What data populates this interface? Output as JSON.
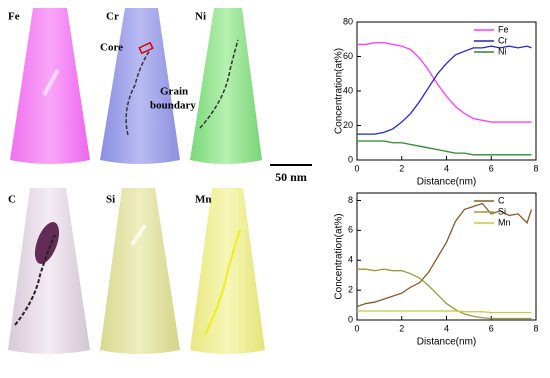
{
  "images": {
    "labels": [
      "Fe",
      "Cr",
      "Ni",
      "C",
      "Si",
      "Mn"
    ],
    "core": "Core",
    "grain_boundary": [
      "Grain",
      "boundary"
    ],
    "scale_bar": "50 nm"
  },
  "chart_data": [
    {
      "type": "line",
      "x_label": "Distance(nm)",
      "y_label": "Concentration(at%)",
      "x": [
        0,
        0.4,
        0.8,
        1.2,
        1.6,
        2.0,
        2.4,
        2.8,
        3.2,
        3.6,
        4.0,
        4.4,
        4.8,
        5.2,
        5.6,
        6.0,
        6.4,
        6.8,
        7.2,
        7.6,
        7.8
      ],
      "series": [
        {
          "name": "Fe",
          "color": "#ff3cff",
          "values": [
            67,
            67,
            68,
            68,
            67,
            66,
            64,
            59,
            52,
            44,
            37,
            31,
            27,
            24,
            23,
            22,
            22,
            22,
            22,
            22,
            22
          ]
        },
        {
          "name": "Cr",
          "color": "#2424c8",
          "values": [
            15,
            15,
            15,
            16,
            18,
            22,
            27,
            34,
            42,
            50,
            56,
            61,
            63,
            65,
            65,
            66,
            65,
            66,
            65,
            66,
            65
          ]
        },
        {
          "name": "Ni",
          "color": "#2a8c2a",
          "values": [
            11,
            11,
            11,
            11,
            10,
            10,
            9,
            8,
            7,
            6,
            5,
            4,
            4,
            3,
            3,
            3,
            3,
            3,
            3,
            3,
            3
          ]
        }
      ],
      "xlim": [
        0,
        8
      ],
      "xticks": [
        0,
        2,
        4,
        6,
        8
      ],
      "ylim": [
        0,
        80
      ],
      "yticks": [
        0,
        20,
        40,
        60,
        80
      ]
    },
    {
      "type": "line",
      "x_label": "Distance(nm)",
      "y_label": "Concentration(at%)",
      "x": [
        0,
        0.4,
        0.8,
        1.2,
        1.6,
        2.0,
        2.4,
        2.8,
        3.2,
        3.6,
        4.0,
        4.4,
        4.8,
        5.2,
        5.6,
        6.0,
        6.4,
        6.8,
        7.2,
        7.6,
        7.8
      ],
      "series": [
        {
          "name": "C",
          "color": "#8b5a2b",
          "values": [
            0.9,
            1.1,
            1.2,
            1.4,
            1.6,
            1.8,
            2.2,
            2.5,
            3.2,
            4.2,
            5.2,
            6.6,
            7.4,
            7.6,
            7.8,
            7.1,
            7.3,
            7.0,
            7.1,
            6.5,
            7.4
          ]
        },
        {
          "name": "Si",
          "color": "#9a9a3a",
          "values": [
            3.4,
            3.4,
            3.3,
            3.4,
            3.3,
            3.3,
            3.1,
            2.8,
            2.3,
            1.7,
            1.1,
            0.7,
            0.4,
            0.25,
            0.15,
            0.1,
            0.1,
            0.1,
            0.1,
            0.1,
            0.1
          ]
        },
        {
          "name": "Mn",
          "color": "#c8c83c",
          "values": [
            0.6,
            0.6,
            0.6,
            0.6,
            0.6,
            0.6,
            0.6,
            0.6,
            0.6,
            0.6,
            0.6,
            0.6,
            0.55,
            0.55,
            0.55,
            0.5,
            0.5,
            0.5,
            0.5,
            0.5,
            0.5
          ]
        }
      ],
      "xlim": [
        0,
        8
      ],
      "xticks": [
        0,
        2,
        4,
        6,
        8
      ],
      "ylim": [
        0,
        8.5
      ],
      "yticks": [
        0,
        2,
        4,
        6,
        8
      ]
    }
  ]
}
